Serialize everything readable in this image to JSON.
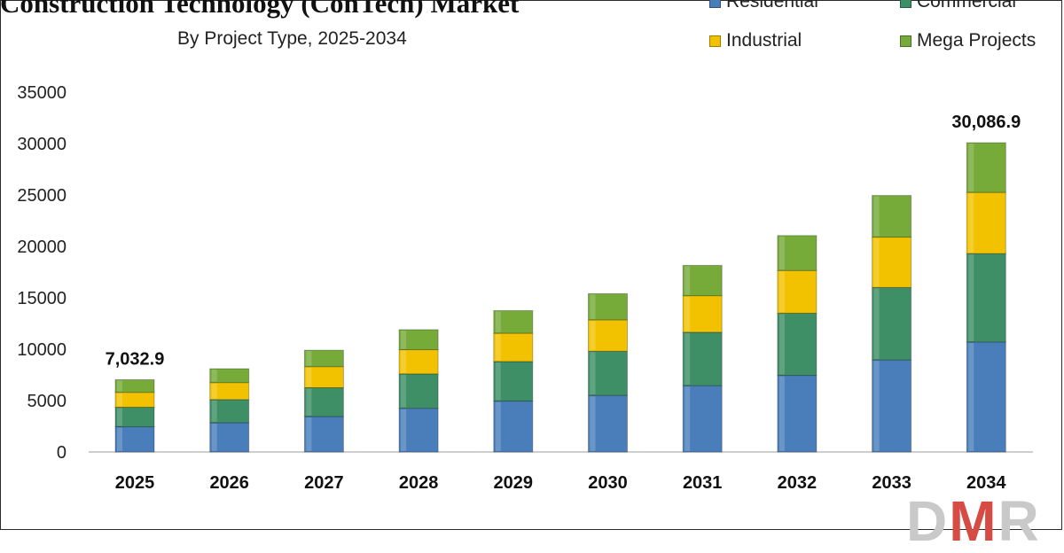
{
  "title": "Construction Technology (ConTech) Market",
  "subtitle": "By Project Type, 2025-2034",
  "legend": [
    {
      "label": "Residential",
      "color": "#4a7ebb"
    },
    {
      "label": "Commercial",
      "color": "#3e8f66"
    },
    {
      "label": "Industrial",
      "color": "#f2c200"
    },
    {
      "label": "Mega Projects",
      "color": "#76ab3a"
    }
  ],
  "logo_text": "DMR",
  "chart_data": {
    "type": "bar",
    "stacked": true,
    "title": "Construction Technology (ConTech) Market",
    "subtitle": "By Project Type, 2025-2034",
    "categories": [
      "2025",
      "2026",
      "2027",
      "2028",
      "2029",
      "2030",
      "2031",
      "2032",
      "2033",
      "2034"
    ],
    "series": [
      {
        "name": "Residential",
        "color": "#4a7ebb",
        "values": [
          2450,
          2850,
          3450,
          4250,
          4950,
          5500,
          6450,
          7450,
          8950,
          10700
        ]
      },
      {
        "name": "Commercial",
        "color": "#3e8f66",
        "values": [
          1900,
          2250,
          2800,
          3350,
          3850,
          4300,
          5200,
          6050,
          7050,
          8600
        ]
      },
      {
        "name": "Industrial",
        "color": "#f2c200",
        "values": [
          1450,
          1650,
          2050,
          2350,
          2750,
          3050,
          3550,
          4150,
          4900,
          5950
        ]
      },
      {
        "name": "Mega Projects",
        "color": "#76ab3a",
        "values": [
          1232.9,
          1350,
          1600,
          1950,
          2200,
          2550,
          2950,
          3400,
          4050,
          4836.9
        ]
      }
    ],
    "data_labels": [
      {
        "category": "2025",
        "text": "7,032.9"
      },
      {
        "category": "2034",
        "text": "30,086.9"
      }
    ],
    "ylim": [
      0,
      35000
    ],
    "yticks": [
      0,
      5000,
      10000,
      15000,
      20000,
      25000,
      30000,
      35000
    ],
    "xlabel": "",
    "ylabel": "",
    "grid": false,
    "legend_position": "top-right"
  }
}
